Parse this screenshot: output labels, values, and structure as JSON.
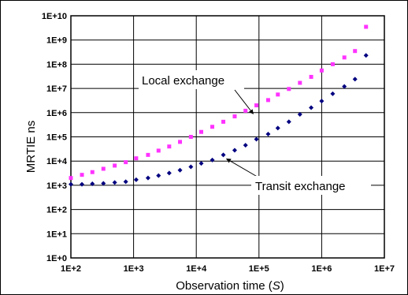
{
  "chart_data": {
    "type": "scatter",
    "xlabel": "Observation time (",
    "xlabel_var": "S",
    "xlabel_end": ")",
    "ylabel": "MRTIE ns",
    "x_scale": "log",
    "y_scale": "log",
    "xlim": [
      100,
      10000000
    ],
    "ylim": [
      1,
      10000000000
    ],
    "x_ticks": [
      "1E+2",
      "1E+3",
      "1E+4",
      "1E+5",
      "1E+6",
      "1E+7"
    ],
    "y_ticks": [
      "1E+0",
      "1E+1",
      "1E+2",
      "1E+3",
      "1E+4",
      "1E+5",
      "1E+6",
      "1E+7",
      "1E+8",
      "1E+9",
      "1E+10"
    ],
    "grid": true,
    "legend": "none",
    "series": [
      {
        "color": "#ff33ff",
        "marker": "square",
        "x": [
          100,
          150,
          220,
          330,
          500,
          750,
          1100,
          1700,
          2500,
          3700,
          5500,
          8200,
          12000,
          18000,
          27000,
          41000,
          61000,
          91000,
          140000,
          200000,
          300000,
          450000,
          680000,
          1000000,
          1500000,
          2300000,
          3400000,
          5100000
        ],
        "y": [
          2000,
          2700,
          3500,
          4800,
          6500,
          9000,
          13000,
          18000,
          27000,
          40000,
          62000,
          100000,
          160000,
          260000,
          420000,
          700000,
          1200000,
          2000000,
          3300000,
          5600000,
          9500000,
          17000000,
          30000000,
          55000000,
          100000000,
          190000000,
          350000000,
          3500000000
        ]
      },
      {
        "color": "#000080",
        "marker": "diamond",
        "x": [
          100,
          150,
          220,
          330,
          500,
          750,
          1100,
          1700,
          2500,
          3700,
          5500,
          8200,
          12000,
          18000,
          27000,
          41000,
          61000,
          91000,
          140000,
          200000,
          300000,
          450000,
          680000,
          1000000,
          1500000,
          2300000,
          3400000,
          5100000
        ],
        "y": [
          1100,
          1100,
          1150,
          1200,
          1300,
          1400,
          1700,
          2000,
          2500,
          3200,
          4200,
          5800,
          8000,
          11000,
          18000,
          28000,
          45000,
          80000,
          130000,
          230000,
          420000,
          850000,
          1600000,
          3000000,
          6000000,
          12000000,
          24000000,
          230000000
        ]
      }
    ],
    "annotations": [
      {
        "text": "Local exchange",
        "anchor_x": 91000,
        "anchor_y": 1200000
      },
      {
        "text": "Transit exchange",
        "anchor_x": 27000,
        "anchor_y": 18000
      }
    ]
  }
}
